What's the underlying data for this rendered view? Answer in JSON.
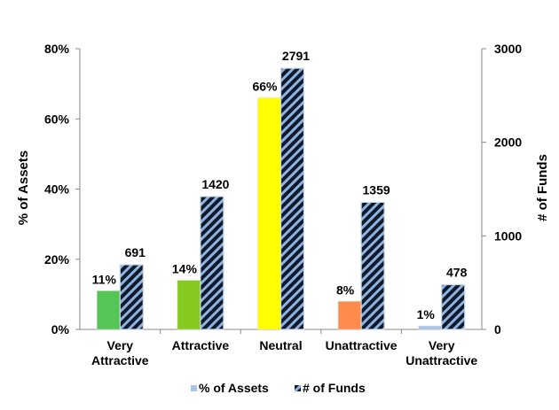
{
  "chart_data": {
    "type": "bar",
    "categories": [
      [
        "Very",
        "Attractive"
      ],
      [
        "Attractive"
      ],
      [
        "Neutral"
      ],
      [
        "Unattractive"
      ],
      [
        "Very",
        "Unattractive"
      ]
    ],
    "series": [
      {
        "name": "% of Assets",
        "axis": "left",
        "values": [
          11,
          14,
          66,
          8,
          1
        ],
        "labels": [
          "11%",
          "14%",
          "66%",
          "8%",
          "1%"
        ],
        "colors": [
          "#55c556",
          "#86c91f",
          "#ffff00",
          "#ff8b4d",
          "#a9c6e8"
        ],
        "legend_color": "#a9c6e8"
      },
      {
        "name": "# of Funds",
        "axis": "right",
        "values": [
          691,
          1420,
          2791,
          1359,
          478
        ],
        "labels": [
          "691",
          "1420",
          "2791",
          "1359",
          "478"
        ],
        "pattern": "diagonal-stripes",
        "colors": [
          "#0d1a2e",
          "#8fb3dc"
        ]
      }
    ],
    "y_left": {
      "label": "% of Assets",
      "ticks": [
        "0%",
        "20%",
        "40%",
        "60%",
        "80%"
      ],
      "range": [
        0,
        80
      ]
    },
    "y_right": {
      "label": "# of Funds",
      "ticks": [
        "0",
        "1000",
        "2000",
        "3000"
      ],
      "range": [
        0,
        3000
      ]
    },
    "grid": false,
    "legend_position": "bottom"
  }
}
